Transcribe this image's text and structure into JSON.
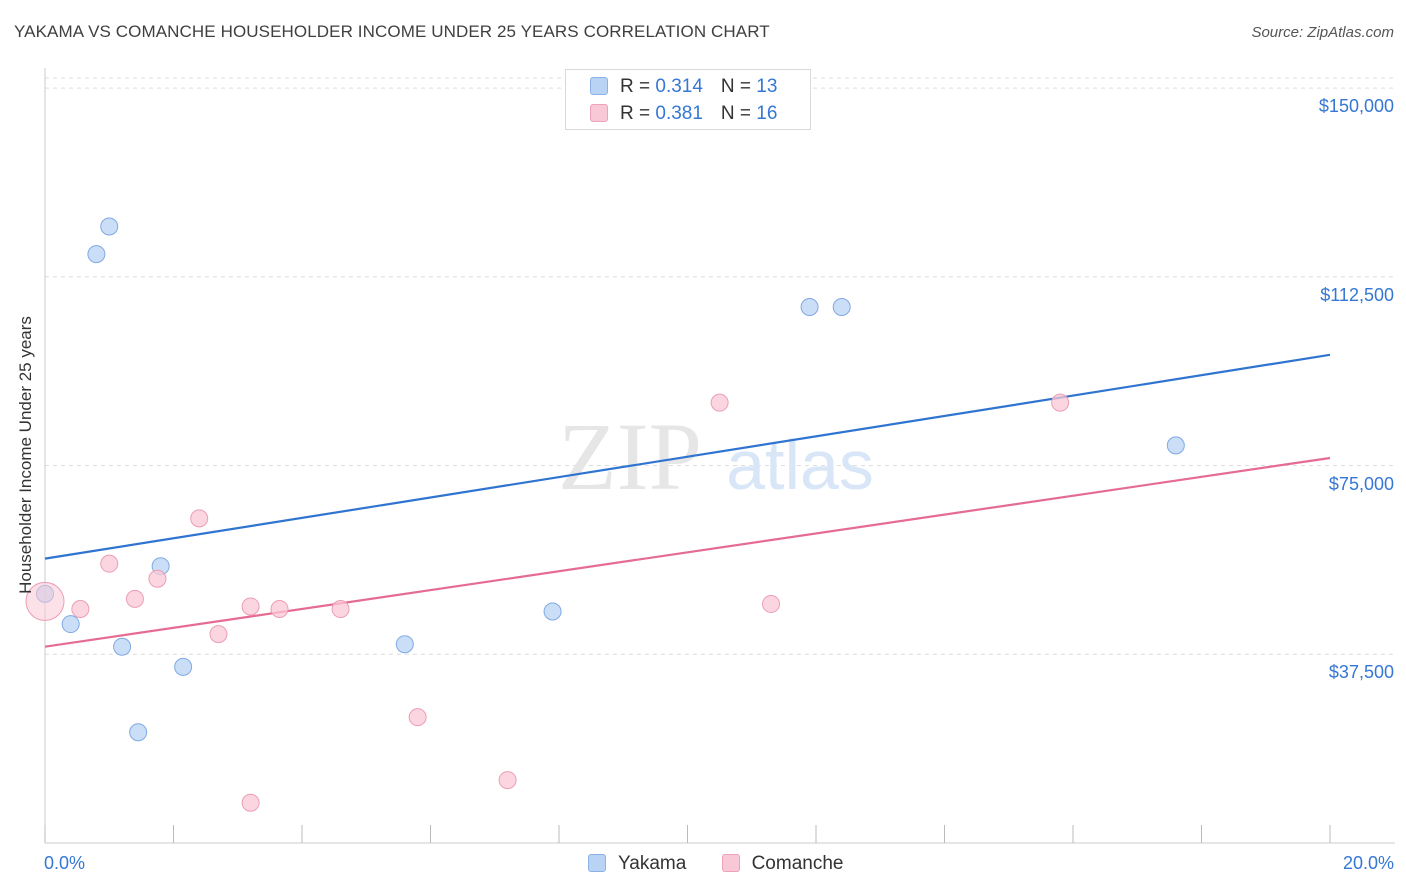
{
  "header": {
    "title": "YAKAMA VS COMANCHE HOUSEHOLDER INCOME UNDER 25 YEARS CORRELATION CHART",
    "source": "Source: ZipAtlas.com"
  },
  "legend_top": {
    "rows": [
      {
        "r_label": "R = ",
        "r_value": "0.314",
        "n_label": "N = ",
        "n_value": "13"
      },
      {
        "r_label": "R = ",
        "r_value": "0.381",
        "n_label": "N = ",
        "n_value": "16"
      }
    ]
  },
  "watermark": {
    "zip": "ZIP",
    "atlas": "atlas"
  },
  "colors": {
    "yakama_fill": "#b9d3f5",
    "yakama_stroke": "#7fa9e2",
    "yakama_line": "#2f74d0",
    "comanche_fill": "#f9c8d6",
    "comanche_stroke": "#ec9db4",
    "comanche_line": "#e56b93",
    "tick_label": "#3577d4",
    "grid": "#dddddd"
  },
  "chart_data": {
    "type": "scatter",
    "title": "YAKAMA VS COMANCHE HOUSEHOLDER INCOME UNDER 25 YEARS CORRELATION CHART",
    "xlabel": "",
    "ylabel": "Householder Income Under 25 years",
    "xlim": [
      0,
      20
    ],
    "ylim": [
      0,
      152000
    ],
    "x_tick_labels": [
      "0.0%",
      "20.0%"
    ],
    "y_ticks": [
      37500,
      75000,
      112500,
      150000
    ],
    "y_tick_labels": [
      "$37,500",
      "$75,000",
      "$112,500",
      "$150,000"
    ],
    "series": [
      {
        "name": "Yakama",
        "r": 0.314,
        "n": 13,
        "points": [
          [
            0.0,
            49500
          ],
          [
            0.4,
            43500
          ],
          [
            0.8,
            117000
          ],
          [
            1.0,
            122500
          ],
          [
            1.2,
            39000
          ],
          [
            1.45,
            22000
          ],
          [
            1.8,
            55000
          ],
          [
            2.15,
            35000
          ],
          [
            5.6,
            39500
          ],
          [
            7.9,
            46000
          ],
          [
            11.9,
            106500
          ],
          [
            12.4,
            106500
          ],
          [
            17.6,
            79000
          ]
        ],
        "trend": {
          "x": [
            0,
            20
          ],
          "y": [
            56500,
            97000
          ]
        }
      },
      {
        "name": "Comanche",
        "r": 0.381,
        "n": 16,
        "points": [
          [
            0.0,
            48000
          ],
          [
            0.55,
            46500
          ],
          [
            1.0,
            55500
          ],
          [
            1.4,
            48500
          ],
          [
            1.75,
            52500
          ],
          [
            2.4,
            64500
          ],
          [
            2.7,
            41500
          ],
          [
            3.2,
            8000
          ],
          [
            3.2,
            47000
          ],
          [
            3.65,
            46500
          ],
          [
            4.6,
            46500
          ],
          [
            5.8,
            25000
          ],
          [
            7.2,
            12500
          ],
          [
            10.5,
            87500
          ],
          [
            11.3,
            47500
          ],
          [
            15.8,
            87500
          ]
        ],
        "trend": {
          "x": [
            0,
            20
          ],
          "y": [
            39000,
            76500
          ]
        }
      }
    ],
    "legend": [
      "Yakama",
      "Comanche"
    ]
  }
}
